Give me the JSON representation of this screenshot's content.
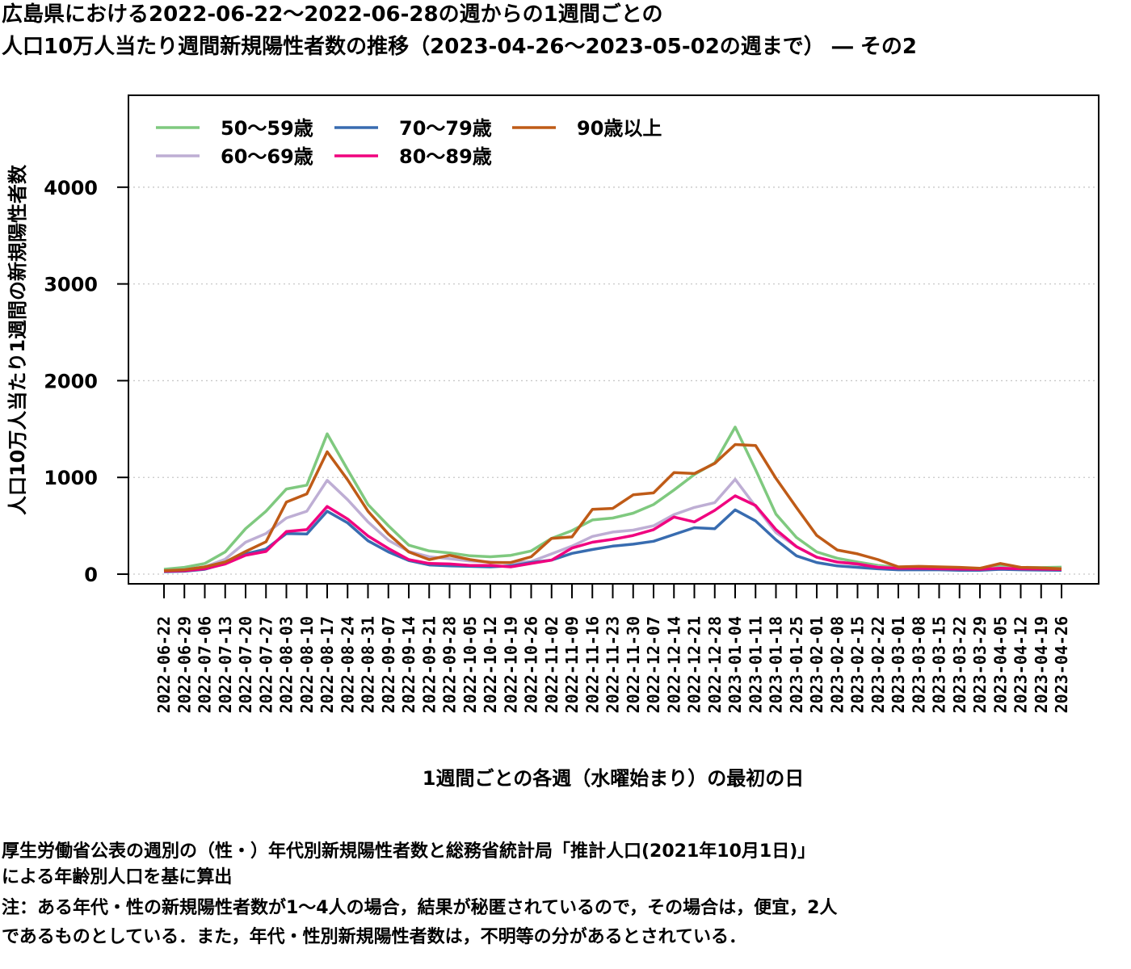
{
  "title_line1": "広島県における2022-06-22～2022-06-28の週からの1週間ごとの",
  "title_line2": "人口10万人当たり週間新規陽性者数の推移（2023-04-26～2023-05-02の週まで） ― その2",
  "notes": {
    "source_line1": "厚生労働省公表の週別の（性・）年代別新規陽性者数と総務省統計局「推計人口(2021年10月1日)」",
    "source_line2": "による年齢別人口を基に算出",
    "note_line1": "注：ある年代・性の新規陽性者数が1～4人の場合，結果が秘匿されているので，その場合は，便宜，2人",
    "note_line2": "であるものとしている．また，年代・性別新規陽性者数は，不明等の分があるとされている．"
  },
  "chart_data": {
    "type": "line",
    "xlabel": "1週間ごとの各週（水曜始まり）の最初の日",
    "ylabel": "人口10万人当たり1週間の新規陽性者数",
    "ylim": [
      -100,
      4950
    ],
    "yticks": [
      0,
      1000,
      2000,
      3000,
      4000
    ],
    "grid": "horizontal dotted",
    "legend_position": "top-left",
    "categories": [
      "2022-06-22",
      "2022-06-29",
      "2022-07-06",
      "2022-07-13",
      "2022-07-20",
      "2022-07-27",
      "2022-08-03",
      "2022-08-10",
      "2022-08-17",
      "2022-08-24",
      "2022-08-31",
      "2022-09-07",
      "2022-09-14",
      "2022-09-21",
      "2022-09-28",
      "2022-10-05",
      "2022-10-12",
      "2022-10-19",
      "2022-10-26",
      "2022-11-02",
      "2022-11-09",
      "2022-11-16",
      "2022-11-23",
      "2022-11-30",
      "2022-12-07",
      "2022-12-14",
      "2022-12-21",
      "2022-12-28",
      "2023-01-04",
      "2023-01-11",
      "2023-01-18",
      "2023-01-25",
      "2023-02-01",
      "2023-02-08",
      "2023-02-15",
      "2023-02-22",
      "2023-03-01",
      "2023-03-08",
      "2023-03-15",
      "2023-03-22",
      "2023-03-29",
      "2023-04-05",
      "2023-04-12",
      "2023-04-19",
      "2023-04-26"
    ],
    "series": [
      {
        "name": "50～59歳",
        "color": "#7fc97f",
        "values": [
          50,
          70,
          110,
          230,
          470,
          650,
          880,
          920,
          1450,
          1080,
          720,
          500,
          300,
          240,
          220,
          190,
          180,
          195,
          240,
          370,
          450,
          560,
          580,
          630,
          720,
          870,
          1030,
          1150,
          1520,
          1080,
          620,
          380,
          230,
          165,
          125,
          90,
          70,
          65,
          60,
          58,
          60,
          85,
          70,
          68,
          72
        ]
      },
      {
        "name": "60～69歳",
        "color": "#beaed4",
        "values": [
          35,
          45,
          75,
          155,
          330,
          420,
          580,
          650,
          970,
          770,
          540,
          350,
          235,
          180,
          160,
          135,
          125,
          115,
          130,
          210,
          290,
          390,
          435,
          455,
          500,
          615,
          690,
          740,
          980,
          700,
          430,
          285,
          175,
          125,
          100,
          75,
          58,
          55,
          50,
          50,
          48,
          65,
          55,
          52,
          58
        ]
      },
      {
        "name": "70～79歳",
        "color": "#386cb0",
        "values": [
          25,
          30,
          50,
          110,
          210,
          260,
          420,
          415,
          650,
          530,
          345,
          230,
          140,
          95,
          85,
          80,
          75,
          85,
          120,
          145,
          215,
          255,
          290,
          310,
          340,
          410,
          480,
          470,
          665,
          550,
          355,
          190,
          120,
          85,
          70,
          55,
          45,
          45,
          45,
          40,
          40,
          50,
          45,
          42,
          40
        ]
      },
      {
        "name": "80～89歳",
        "color": "#f0027f",
        "values": [
          30,
          35,
          55,
          105,
          195,
          235,
          440,
          460,
          700,
          570,
          395,
          265,
          150,
          110,
          105,
          90,
          90,
          75,
          110,
          145,
          270,
          330,
          360,
          400,
          460,
          590,
          540,
          660,
          810,
          710,
          460,
          285,
          175,
          125,
          105,
          70,
          60,
          60,
          55,
          52,
          50,
          60,
          55,
          52,
          48
        ]
      },
      {
        "name": "90歳以上",
        "color": "#bf5b17",
        "values": [
          35,
          45,
          75,
          125,
          235,
          335,
          745,
          830,
          1265,
          975,
          650,
          415,
          230,
          150,
          195,
          150,
          120,
          120,
          180,
          370,
          385,
          670,
          680,
          820,
          840,
          1050,
          1040,
          1145,
          1340,
          1330,
          990,
          690,
          400,
          250,
          210,
          150,
          75,
          80,
          75,
          70,
          60,
          110,
          70,
          65,
          55
        ]
      }
    ]
  }
}
